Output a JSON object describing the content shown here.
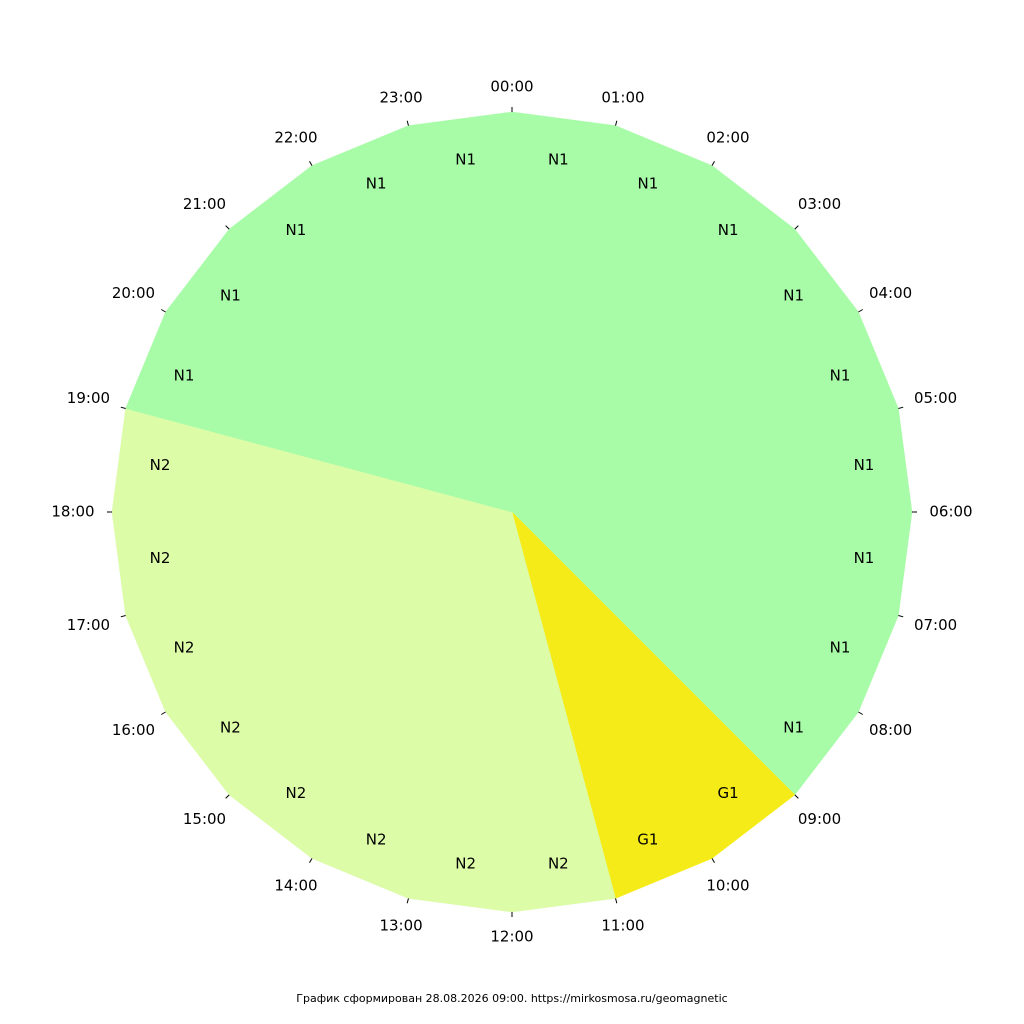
{
  "chart_data": {
    "type": "clock",
    "categories": [
      "00:00",
      "01:00",
      "02:00",
      "03:00",
      "04:00",
      "05:00",
      "06:00",
      "07:00",
      "08:00",
      "09:00",
      "10:00",
      "11:00",
      "12:00",
      "13:00",
      "14:00",
      "15:00",
      "16:00",
      "17:00",
      "18:00",
      "19:00",
      "20:00",
      "21:00",
      "22:00",
      "23:00"
    ],
    "levels": [
      "N1",
      "N1",
      "N1",
      "N1",
      "N1",
      "N1",
      "N1",
      "N1",
      "N1",
      "G1",
      "G1",
      "N2",
      "N2",
      "N2",
      "N2",
      "N2",
      "N2",
      "N2",
      "N2",
      "N1",
      "N1",
      "N1",
      "N1",
      "N1"
    ],
    "colors": {
      "N1": "#a8fca8",
      "N2": "#dcfca8",
      "G1": "#f5eb19"
    },
    "footer": "График сформирован 28.08.2026 09:00. https://mirkosmosa.ru/geomagnetic"
  }
}
